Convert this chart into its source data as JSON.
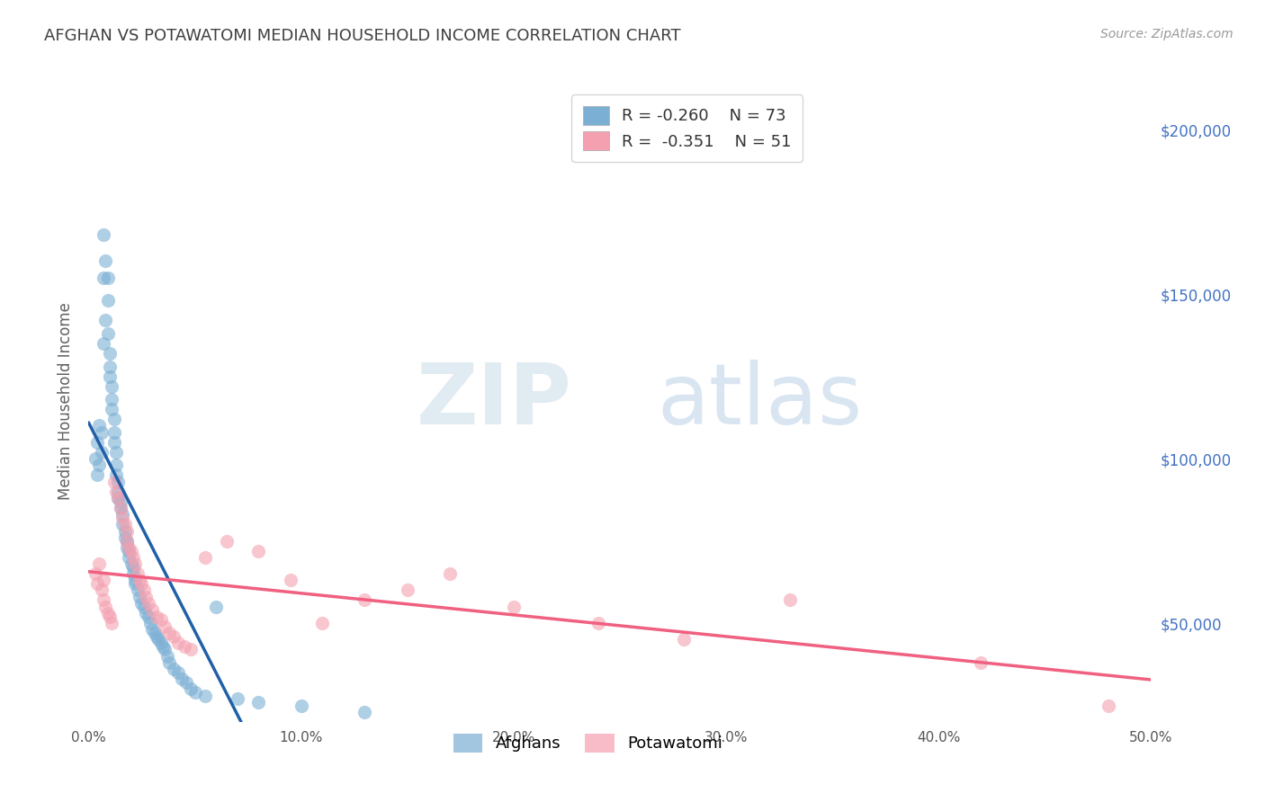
{
  "title": "AFGHAN VS POTAWATOMI MEDIAN HOUSEHOLD INCOME CORRELATION CHART",
  "source": "Source: ZipAtlas.com",
  "ylabel": "Median Household Income",
  "xlabel_ticks": [
    "0.0%",
    "10.0%",
    "20.0%",
    "30.0%",
    "40.0%",
    "50.0%"
  ],
  "xlabel_vals": [
    0.0,
    0.1,
    0.2,
    0.3,
    0.4,
    0.5
  ],
  "ylabel_vals": [
    50000,
    100000,
    150000,
    200000
  ],
  "ylabel_labels": [
    "$50,000",
    "$100,000",
    "$150,000",
    "$200,000"
  ],
  "xlim": [
    0.0,
    0.5
  ],
  "ylim": [
    20000,
    215000
  ],
  "afghan_R": "-0.260",
  "afghan_N": "73",
  "potawatomi_R": "-0.351",
  "potawatomi_N": "51",
  "legend_entries": [
    "Afghans",
    "Potawatomi"
  ],
  "watermark_zip": "ZIP",
  "watermark_atlas": "atlas",
  "afghan_color": "#7bafd4",
  "potawatomi_color": "#f4a0b0",
  "afghan_line_color": "#2060a8",
  "potawatomi_line_color": "#f06080",
  "dashed_line_color": "#90b8d0",
  "title_color": "#404040",
  "axis_label_color": "#606060",
  "right_tick_color": "#4472c4",
  "grid_color": "#cccccc",
  "background_color": "#ffffff",
  "afghan_x": [
    0.003,
    0.004,
    0.004,
    0.005,
    0.005,
    0.006,
    0.006,
    0.007,
    0.007,
    0.007,
    0.008,
    0.008,
    0.009,
    0.009,
    0.009,
    0.01,
    0.01,
    0.01,
    0.011,
    0.011,
    0.011,
    0.012,
    0.012,
    0.012,
    0.013,
    0.013,
    0.013,
    0.014,
    0.014,
    0.014,
    0.015,
    0.015,
    0.016,
    0.016,
    0.017,
    0.017,
    0.018,
    0.018,
    0.019,
    0.019,
    0.02,
    0.021,
    0.021,
    0.022,
    0.022,
    0.023,
    0.024,
    0.025,
    0.026,
    0.027,
    0.028,
    0.029,
    0.03,
    0.031,
    0.032,
    0.033,
    0.034,
    0.035,
    0.036,
    0.037,
    0.038,
    0.04,
    0.042,
    0.044,
    0.046,
    0.048,
    0.05,
    0.055,
    0.06,
    0.07,
    0.08,
    0.1,
    0.13
  ],
  "afghan_y": [
    100000,
    95000,
    105000,
    98000,
    110000,
    102000,
    108000,
    168000,
    155000,
    135000,
    160000,
    142000,
    155000,
    148000,
    138000,
    132000,
    128000,
    125000,
    122000,
    118000,
    115000,
    112000,
    108000,
    105000,
    102000,
    98000,
    95000,
    93000,
    90000,
    88000,
    87000,
    85000,
    83000,
    80000,
    78000,
    76000,
    75000,
    73000,
    72000,
    70000,
    68000,
    67000,
    65000,
    63000,
    62000,
    60000,
    58000,
    56000,
    55000,
    53000,
    52000,
    50000,
    48000,
    47000,
    46000,
    45000,
    44000,
    43000,
    42000,
    40000,
    38000,
    36000,
    35000,
    33000,
    32000,
    30000,
    29000,
    28000,
    55000,
    27000,
    26000,
    25000,
    23000
  ],
  "potawatomi_x": [
    0.003,
    0.004,
    0.005,
    0.006,
    0.007,
    0.007,
    0.008,
    0.009,
    0.01,
    0.011,
    0.012,
    0.013,
    0.014,
    0.015,
    0.016,
    0.017,
    0.018,
    0.018,
    0.019,
    0.02,
    0.021,
    0.022,
    0.023,
    0.024,
    0.025,
    0.026,
    0.027,
    0.028,
    0.03,
    0.032,
    0.034,
    0.036,
    0.038,
    0.04,
    0.042,
    0.045,
    0.048,
    0.055,
    0.065,
    0.08,
    0.095,
    0.11,
    0.13,
    0.15,
    0.17,
    0.2,
    0.24,
    0.28,
    0.33,
    0.42,
    0.48
  ],
  "potawatomi_y": [
    65000,
    62000,
    68000,
    60000,
    63000,
    57000,
    55000,
    53000,
    52000,
    50000,
    93000,
    90000,
    88000,
    85000,
    82000,
    80000,
    78000,
    75000,
    73000,
    72000,
    70000,
    68000,
    65000,
    63000,
    62000,
    60000,
    58000,
    56000,
    54000,
    52000,
    51000,
    49000,
    47000,
    46000,
    44000,
    43000,
    42000,
    70000,
    75000,
    72000,
    63000,
    50000,
    57000,
    60000,
    65000,
    55000,
    50000,
    45000,
    57000,
    38000,
    25000
  ]
}
